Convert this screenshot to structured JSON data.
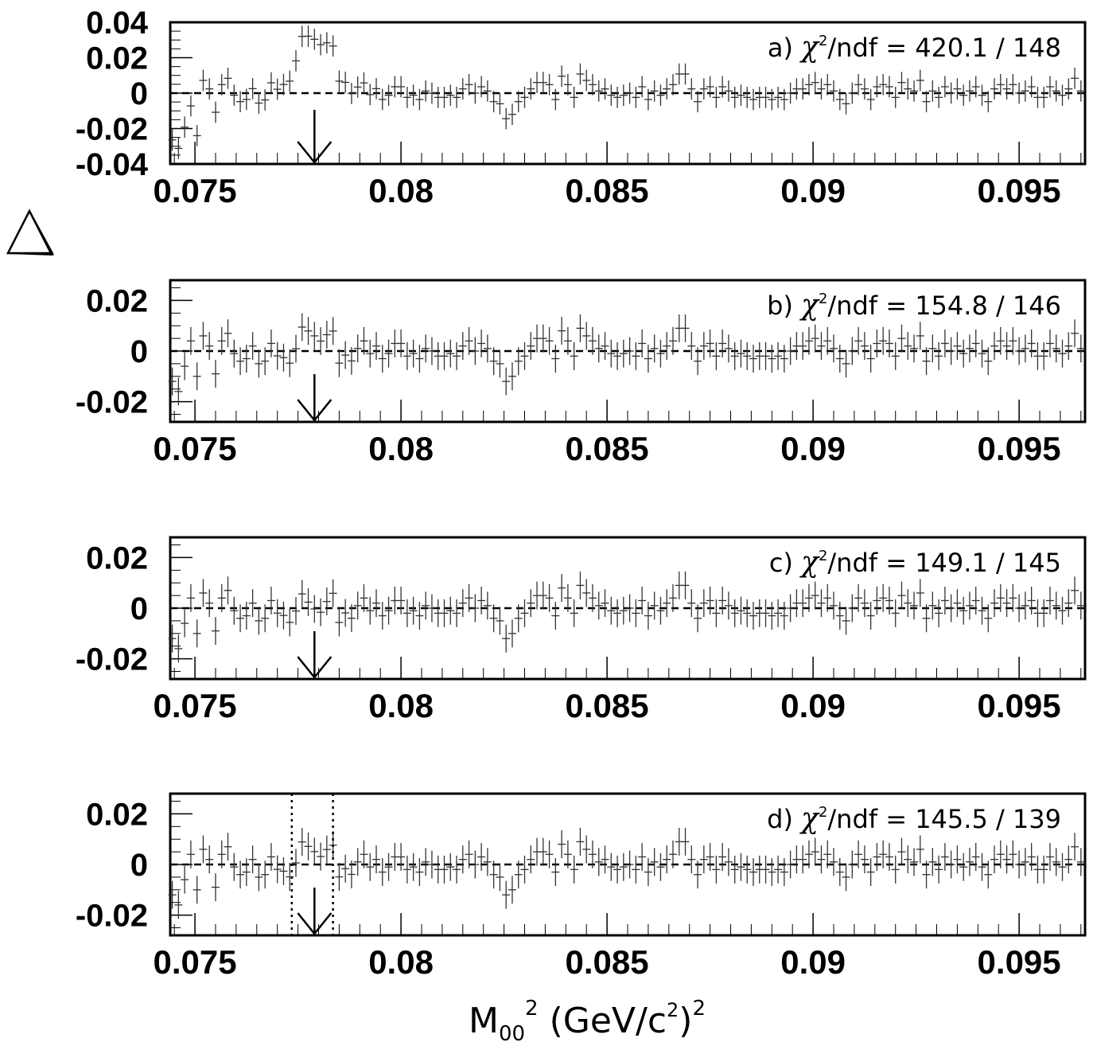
{
  "chart_data": {
    "type": "scatter",
    "xlabel": {
      "main": "M",
      "sub": "00",
      "sup": "2",
      "units": "(GeV/c",
      "units_sup": "2",
      "units_close": ")",
      "units_close_sup": "2"
    },
    "ylabel": "Δ",
    "xlim": [
      0.0744,
      0.0966
    ],
    "xticks": [
      0.075,
      0.08,
      0.085,
      0.09,
      0.095
    ],
    "xtick_labels": [
      "0.075",
      "0.08",
      "0.085",
      "0.09",
      "0.095"
    ],
    "grid": false,
    "reference_line": 0,
    "arrow_x": 0.0779,
    "panels": [
      {
        "id": "a",
        "label": "a)",
        "chi_symbol": "χ",
        "chi_sup": "2",
        "fit_text": "/ndf = 420.1 / 148",
        "ylim": [
          -0.04,
          0.04
        ],
        "yticks": [
          -0.04,
          -0.02,
          0,
          0.02,
          0.04
        ],
        "ytick_labels": [
          "-0.04",
          "-0.02",
          "0",
          "0.02",
          "0.04"
        ],
        "window": null
      },
      {
        "id": "b",
        "label": "b)",
        "chi_symbol": "χ",
        "chi_sup": "2",
        "fit_text": "/ndf = 154.8 / 146",
        "ylim": [
          -0.028,
          0.028
        ],
        "yticks": [
          -0.02,
          0,
          0.02
        ],
        "ytick_labels": [
          "-0.02",
          "0",
          "0.02"
        ],
        "window": null
      },
      {
        "id": "c",
        "label": "c)",
        "chi_symbol": "χ",
        "chi_sup": "2",
        "fit_text": "/ndf = 149.1 / 145",
        "ylim": [
          -0.028,
          0.028
        ],
        "yticks": [
          -0.02,
          0,
          0.02
        ],
        "ytick_labels": [
          "-0.02",
          "0",
          "0.02"
        ],
        "window": null
      },
      {
        "id": "d",
        "label": "d)",
        "chi_symbol": "χ",
        "chi_sup": "2",
        "fit_text": "/ndf = 145.5 / 139",
        "ylim": [
          -0.028,
          0.028
        ],
        "yticks": [
          -0.02,
          0,
          0.02
        ],
        "ytick_labels": [
          "-0.02",
          "0",
          "0.02"
        ],
        "window": [
          0.07735,
          0.07835
        ]
      }
    ],
    "series_points_per_panel": 148,
    "x_first": 0.07445,
    "x_step": 0.00015,
    "base_values": [
      -0.012,
      -0.016,
      -0.006,
      0.004,
      -0.01,
      0.006,
      0.002,
      -0.009,
      0.004,
      0.007,
      -0.001,
      -0.004,
      -0.003,
      0.002,
      -0.005,
      -0.004,
      0.003,
      -0.002,
      -0.003,
      -0.006,
      -0.002,
      0.004,
      0.0,
      -0.003,
      -0.004,
      0.001,
      0.005,
      -0.006,
      -0.002,
      -0.004,
      0.001,
      0.004,
      -0.001,
      0.002,
      -0.003,
      -0.001,
      0.003,
      0.003,
      -0.002,
      -0.001,
      -0.003,
      0.001,
      0.0,
      -0.002,
      -0.002,
      -0.001,
      -0.002,
      0.002,
      0.004,
      0.0,
      0.003,
      0.001,
      -0.004,
      -0.005,
      -0.012,
      -0.01,
      -0.004,
      -0.002,
      0.002,
      0.005,
      0.005,
      0.004,
      -0.003,
      0.008,
      0.004,
      -0.002,
      0.009,
      0.006,
      0.004,
      0.001,
      0.002,
      -0.001,
      -0.002,
      -0.001,
      0.0,
      -0.002,
      0.003,
      -0.003,
      0.001,
      -0.001,
      0.002,
      0.004,
      0.009,
      0.009,
      0.002,
      -0.004,
      0.002,
      0.003,
      -0.002,
      0.003,
      0.001,
      -0.002,
      -0.001,
      -0.002,
      -0.003,
      -0.002,
      -0.002,
      -0.003,
      -0.002,
      -0.003,
      0.0,
      0.002,
      0.002,
      0.004,
      0.005,
      0.002,
      0.004,
      0.001,
      -0.003,
      -0.005,
      0.0,
      0.004,
      0.002,
      -0.003,
      0.003,
      0.004,
      0.003,
      -0.002,
      0.005,
      0.002,
      0.001,
      0.006,
      -0.004,
      0.001,
      -0.002,
      0.003,
      0.0,
      0.002,
      -0.001,
      0.001,
      0.003,
      -0.001,
      -0.004,
      0.002,
      0.004,
      0.002,
      0.004,
      0.0,
      0.001,
      0.003,
      -0.002,
      -0.002,
      0.003,
      0.001,
      -0.001,
      0.002,
      0.007,
      0.001
    ],
    "peak_a": {
      "center": 0.0779,
      "height": 0.034,
      "width": 0.00045
    },
    "residual_b": {
      "center": 0.0779,
      "height": 0.009,
      "width": 0.0003
    }
  }
}
